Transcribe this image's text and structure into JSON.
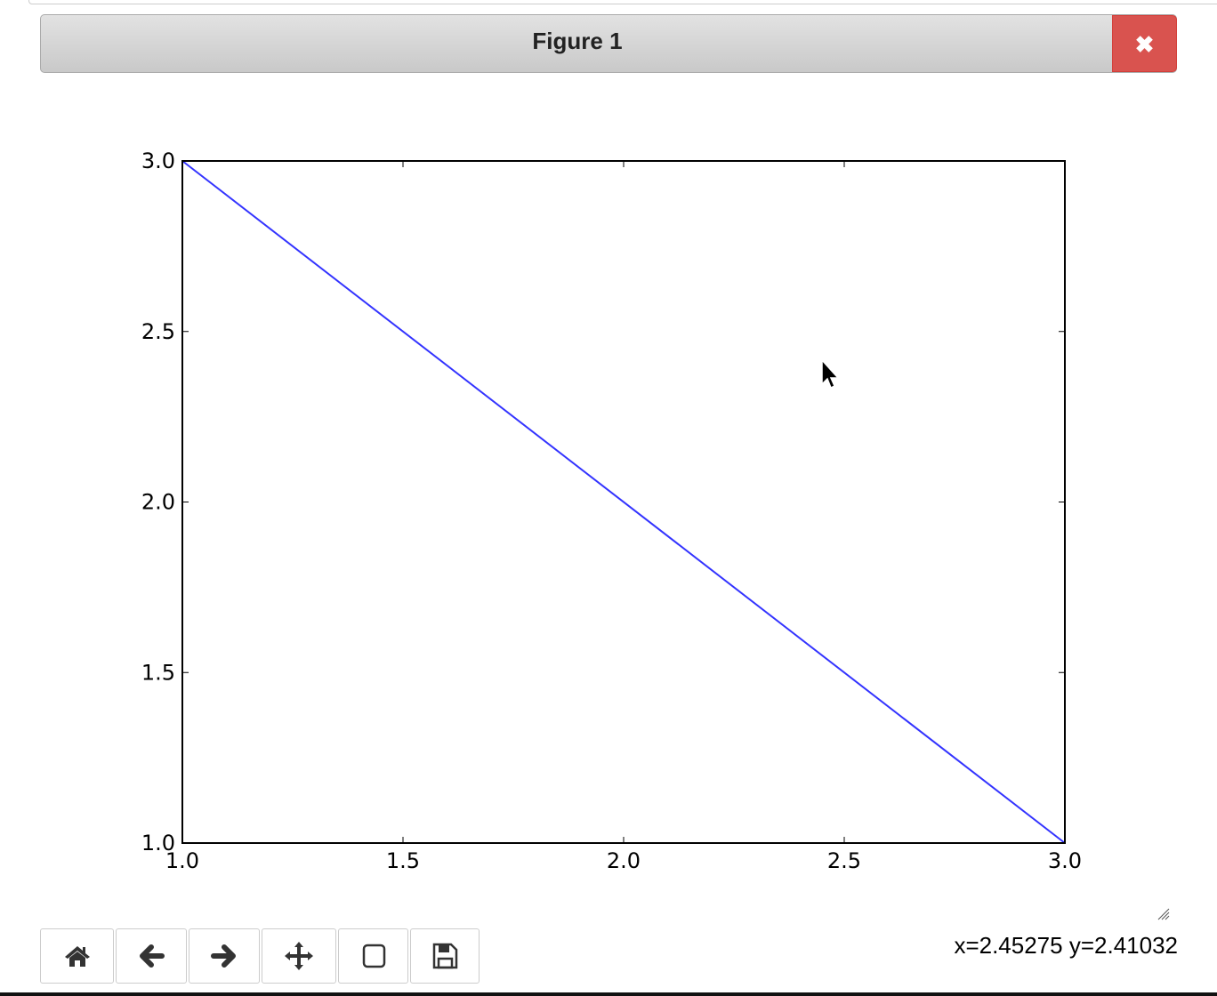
{
  "window": {
    "title": "Figure 1",
    "close_icon": "close-x-icon",
    "accent": "#d9534f"
  },
  "toolbar": {
    "buttons": [
      {
        "name": "home",
        "icon": "home-icon"
      },
      {
        "name": "back",
        "icon": "arrow-left-icon"
      },
      {
        "name": "forward",
        "icon": "arrow-right-icon"
      },
      {
        "name": "pan",
        "icon": "move-icon"
      },
      {
        "name": "zoom",
        "icon": "square-icon"
      },
      {
        "name": "download",
        "icon": "floppy-disk-icon"
      }
    ]
  },
  "status": {
    "readout": "x=2.45275 y=2.41032"
  },
  "chart_data": {
    "type": "line",
    "series": [
      {
        "x": [
          1.0,
          3.0
        ],
        "y": [
          3.0,
          1.0
        ],
        "color": "#0000ff"
      }
    ],
    "xlim": [
      1.0,
      3.0
    ],
    "ylim": [
      1.0,
      3.0
    ],
    "xticks": [
      "1.0",
      "1.5",
      "2.0",
      "2.5",
      "3.0"
    ],
    "yticks": [
      "1.0",
      "1.5",
      "2.0",
      "2.5",
      "3.0"
    ],
    "grid": false
  }
}
